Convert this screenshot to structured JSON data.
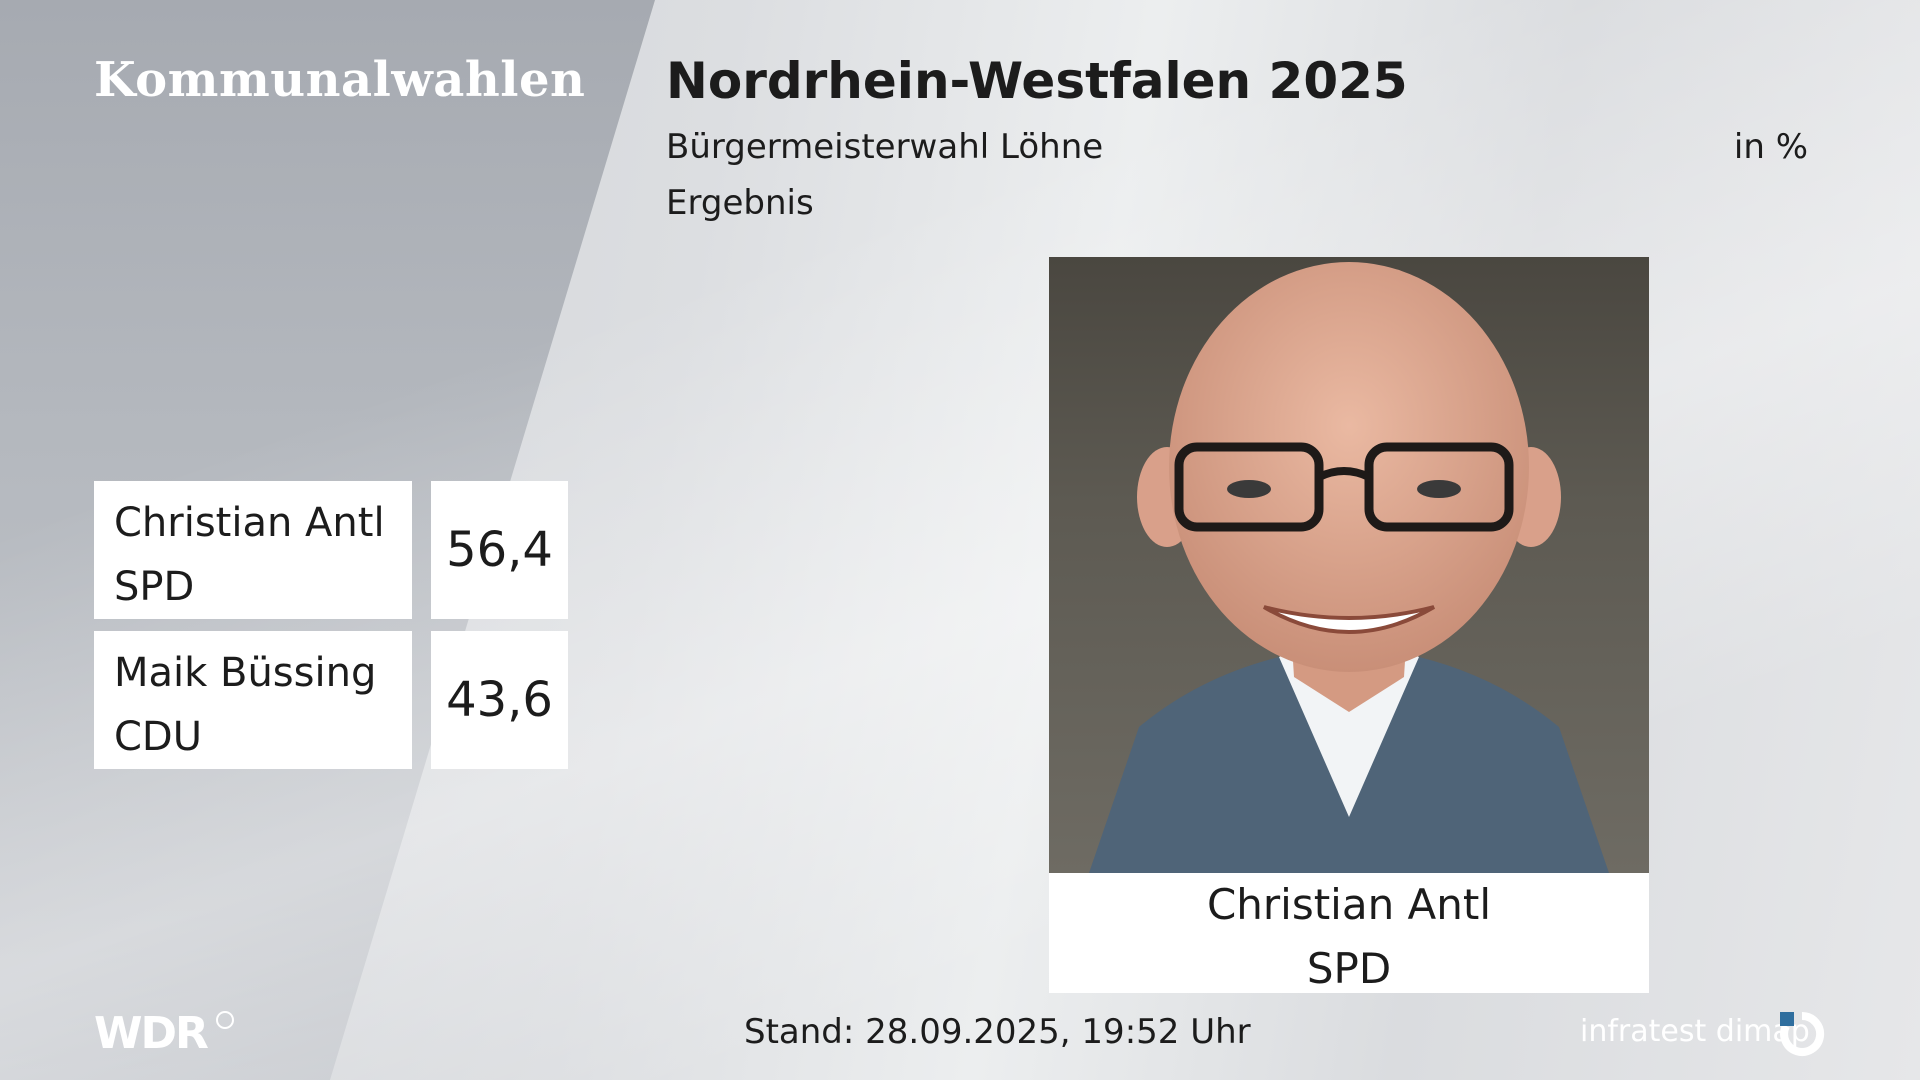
{
  "header": {
    "brand": "Kommunalwahlen",
    "title": "Nordrhein-Westfalen 2025",
    "subtitle": "Bürgermeisterwahl Löhne",
    "subtitle2": "Ergebnis",
    "unit": "in %"
  },
  "results": [
    {
      "name": "Christian Antl",
      "party": "SPD",
      "value": "56,4"
    },
    {
      "name": "Maik Büssing",
      "party": "CDU",
      "value": "43,6"
    }
  ],
  "winner": {
    "name": "Christian Antl",
    "party": "SPD"
  },
  "footer": {
    "date": "Stand: 28.09.2025, 19:52 Uhr",
    "broadcaster": "WDR",
    "institute": "infratest dimap"
  },
  "colors": {
    "text": "#1c1c1c",
    "box": "#ffffff",
    "panel": "#a6aab1"
  },
  "icons": {
    "wdr_logo": "wdr-logo-icon",
    "infratest_logo": "infratest-dimap-logo-icon",
    "portrait": "candidate-portrait"
  }
}
